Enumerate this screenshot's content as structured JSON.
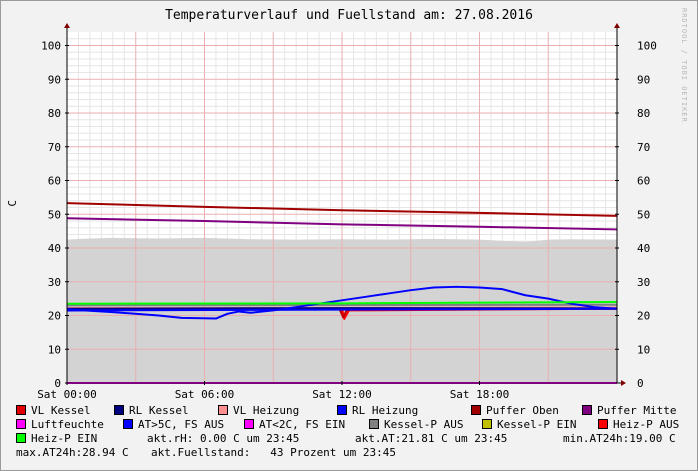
{
  "header": {
    "title": "Temperaturverlauf und Fuellstand am: 27.08.2016",
    "watermark": "RRDTOOL / TOBI OETIKER"
  },
  "chart_data": {
    "type": "line",
    "ylabel": "C",
    "xlabel": "",
    "ylim": [
      0,
      104
    ],
    "xlim_hours": [
      0,
      24
    ],
    "y_ticks": [
      0,
      10,
      20,
      30,
      40,
      50,
      60,
      70,
      80,
      90,
      100
    ],
    "x_ticks": [
      {
        "h": 0,
        "label": "Sat 00:00"
      },
      {
        "h": 6,
        "label": "Sat 06:00"
      },
      {
        "h": 12,
        "label": "Sat 12:00"
      },
      {
        "h": 18,
        "label": "Sat 18:00"
      }
    ],
    "grid": true,
    "series": [
      {
        "name": "Luftfeuchte (area)",
        "color": "#d3d3d3",
        "kind": "area",
        "points": [
          [
            0,
            42.5
          ],
          [
            1,
            42.8
          ],
          [
            2,
            43
          ],
          [
            4,
            42.8
          ],
          [
            6,
            43
          ],
          [
            8,
            42.6
          ],
          [
            10,
            42.5
          ],
          [
            12,
            42.6
          ],
          [
            14,
            42.5
          ],
          [
            16,
            42.7
          ],
          [
            18,
            42.5
          ],
          [
            20,
            41.8
          ],
          [
            21,
            42.5
          ],
          [
            22,
            42.6
          ],
          [
            24,
            42.5
          ]
        ]
      },
      {
        "name": "Kessel-P AUS",
        "color": "#808080",
        "kind": "line",
        "points": [
          [
            0,
            23
          ],
          [
            24,
            23.2
          ]
        ]
      },
      {
        "name": "VL Heizung",
        "color": "#ff9090",
        "kind": "line",
        "points": [
          [
            0,
            22.2
          ],
          [
            24,
            22.4
          ]
        ]
      },
      {
        "name": "Heiz-P AUS",
        "color": "#ff0000",
        "kind": "line",
        "points": [
          [
            0,
            22
          ],
          [
            12,
            22
          ],
          [
            12.1,
            19
          ],
          [
            12.3,
            21.5
          ],
          [
            24,
            22
          ]
        ]
      },
      {
        "name": "VL Kessel",
        "color": "#c00000",
        "kind": "line",
        "points": [
          [
            0,
            21.8
          ],
          [
            11.9,
            21.8
          ],
          [
            12.05,
            19.5
          ],
          [
            12.2,
            21.5
          ],
          [
            12.5,
            21.9
          ],
          [
            24,
            22
          ]
        ]
      },
      {
        "name": "RL Kessel",
        "color": "#000080",
        "kind": "line",
        "points": [
          [
            0,
            22
          ],
          [
            12,
            22.2
          ],
          [
            24,
            22.1
          ]
        ]
      },
      {
        "name": "RL Heizung",
        "color": "#0000ff",
        "kind": "line",
        "points": [
          [
            0,
            21.8
          ],
          [
            2,
            21
          ],
          [
            4,
            20
          ],
          [
            5,
            19.3
          ],
          [
            6.5,
            19.1
          ],
          [
            7,
            20.5
          ],
          [
            7.5,
            21.2
          ],
          [
            8,
            20.8
          ],
          [
            9,
            21.5
          ],
          [
            10,
            22.5
          ],
          [
            11,
            23.5
          ],
          [
            12,
            24.5
          ],
          [
            13,
            25.5
          ],
          [
            14,
            26.5
          ],
          [
            15,
            27.5
          ],
          [
            16,
            28.3
          ],
          [
            17,
            28.5
          ],
          [
            18,
            28.3
          ],
          [
            19,
            27.8
          ],
          [
            20,
            26
          ],
          [
            21,
            25
          ],
          [
            22,
            23.5
          ],
          [
            23,
            22.5
          ],
          [
            24,
            22
          ]
        ]
      },
      {
        "name": "AT>5C, FS AUS",
        "color": "#0000ff",
        "kind": "line",
        "points": [
          [
            0,
            21.5
          ],
          [
            24,
            22
          ]
        ]
      },
      {
        "name": "Heiz-P EIN",
        "color": "#00ff00",
        "kind": "line",
        "points": [
          [
            0,
            23.5
          ],
          [
            12,
            23.6
          ],
          [
            24,
            24
          ]
        ]
      },
      {
        "name": "Puffer Oben",
        "color": "#a00000",
        "kind": "line",
        "points": [
          [
            0,
            53.3
          ],
          [
            6,
            52.2
          ],
          [
            12,
            51.2
          ],
          [
            18,
            50.4
          ],
          [
            24,
            49.5
          ]
        ]
      },
      {
        "name": "Puffer Mitte",
        "color": "#800080",
        "kind": "line",
        "points": [
          [
            0,
            48.8
          ],
          [
            6,
            48
          ],
          [
            12,
            47
          ],
          [
            18,
            46.3
          ],
          [
            24,
            45.5
          ]
        ]
      },
      {
        "name": "AT<2C, FS EIN",
        "color": "#ff00ff",
        "kind": "line",
        "points": [
          [
            0,
            0
          ],
          [
            24,
            0
          ]
        ]
      }
    ]
  },
  "legend": {
    "rows": [
      [
        {
          "label": "VL Kessel",
          "color": "#e00000"
        },
        {
          "label": "RL Kessel",
          "color": "#000080"
        },
        {
          "label": "VL Heizung",
          "color": "#ff9090"
        },
        {
          "label": "RL Heizung",
          "color": "#0000ff"
        },
        {
          "label": "Puffer Oben",
          "color": "#a00000"
        },
        {
          "label": "Puffer Mitte",
          "color": "#800080"
        }
      ],
      [
        {
          "label": "Luftfeuchte",
          "color": "#ff00ff"
        },
        {
          "label": "AT>5C, FS AUS",
          "color": "#0000ff"
        },
        {
          "label": "AT<2C, FS EIN",
          "color": "#ff00ff"
        },
        {
          "label": "Kessel-P AUS",
          "color": "#808080"
        },
        {
          "label": "Kessel-P EIN",
          "color": "#c0c000"
        },
        {
          "label": "Heiz-P AUS",
          "color": "#ff0000"
        }
      ]
    ],
    "heiz_ein": {
      "label": "Heiz-P EIN",
      "color": "#00ff00"
    },
    "stats": {
      "rh": "akt.rH: 0.00 C um 23:45",
      "at": "akt.AT:21.81 C um 23:45",
      "min": "min.AT24h:19.00 C",
      "max": "max.AT24h:28.94 C",
      "fuellstand": "akt.Fuellstand:   43 Prozent um 23:45"
    }
  }
}
